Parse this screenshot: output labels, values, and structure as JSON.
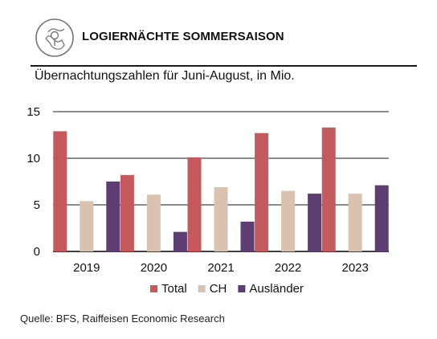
{
  "header": {
    "title": "LOGIERNÄCHTE SOMMERSAISON",
    "subtitle": "Übernachtungszahlen für Juni-August, in Mio.",
    "icon": "map-pin-icon"
  },
  "footer": {
    "source": "Quelle: BFS, Raiffeisen Economic Research"
  },
  "colors": {
    "Total": "#c45a5e",
    "CH": "#d9c3b0",
    "Ausländer": "#5e3d72",
    "icon": "#777777"
  },
  "chart_data": {
    "type": "bar",
    "title": "LOGIERNÄCHTE SOMMERSAISON",
    "subtitle": "Übernachtungszahlen für Juni-August, in Mio.",
    "xlabel": "",
    "ylabel": "",
    "categories": [
      "2019",
      "2020",
      "2021",
      "2022",
      "2023"
    ],
    "series": [
      {
        "name": "Total",
        "values": [
          12.9,
          8.2,
          10.1,
          12.7,
          13.3
        ]
      },
      {
        "name": "CH",
        "values": [
          5.4,
          6.1,
          6.9,
          6.5,
          6.2
        ]
      },
      {
        "name": "Ausländer",
        "values": [
          7.5,
          2.1,
          3.2,
          6.2,
          7.1
        ]
      }
    ],
    "ylim": [
      0,
      15
    ],
    "yticks": [
      "0",
      "5",
      "10",
      "15"
    ],
    "grid": true,
    "legend": "bottom"
  }
}
